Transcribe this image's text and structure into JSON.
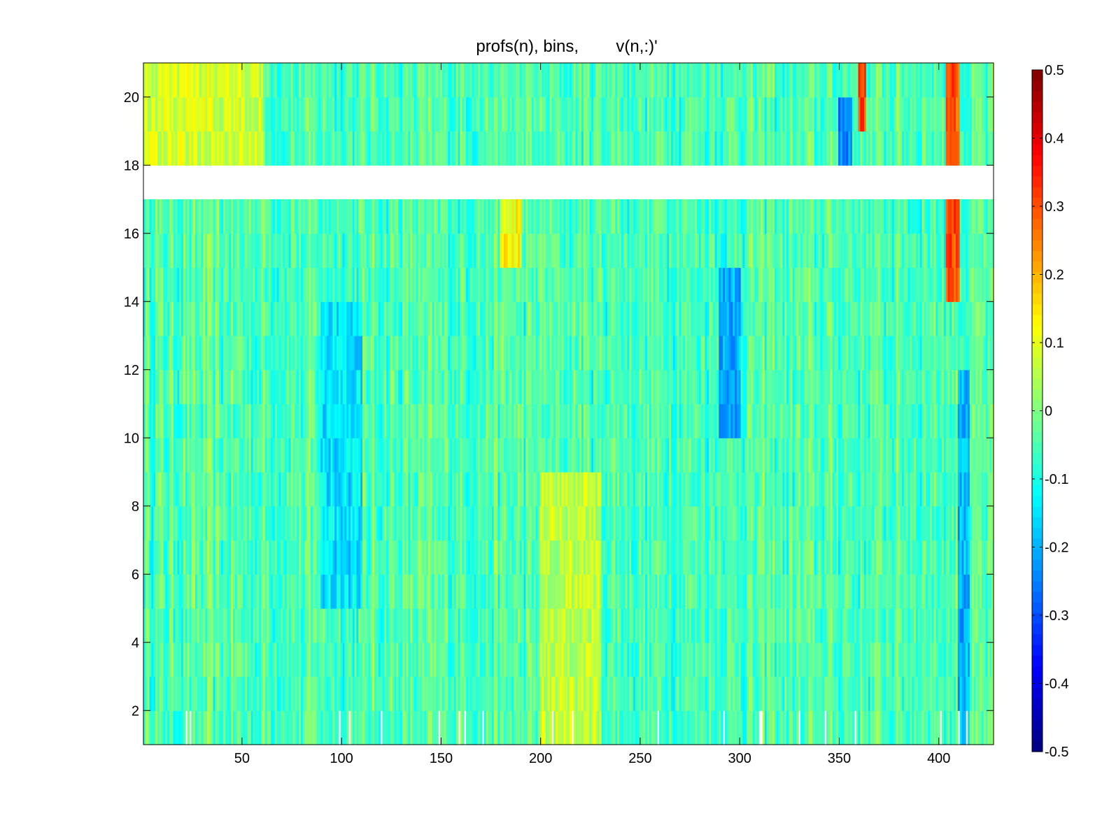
{
  "chart_data": {
    "type": "heatmap",
    "title": "profs(n), bins,        v(n,:)'",
    "xlabel": "",
    "ylabel": "",
    "x_ticks": [
      50,
      100,
      150,
      200,
      250,
      300,
      350,
      400
    ],
    "y_ticks": [
      2,
      4,
      6,
      8,
      10,
      12,
      14,
      16,
      18,
      20
    ],
    "xlim": [
      0.5,
      427.5
    ],
    "ylim": [
      1,
      21
    ],
    "n_bins": 427,
    "n_rows": 20,
    "missing_rows": [
      17
    ],
    "grid": false,
    "colormap": "jet",
    "colorbar": {
      "location": "right",
      "clim": [
        -0.5,
        0.5
      ],
      "ticks": [
        0.5,
        0.4,
        0.3,
        0.2,
        0.1,
        0,
        -0.1,
        -0.2,
        -0.3,
        -0.4,
        -0.5
      ]
    },
    "approx_field": {
      "background": -0.05,
      "features": [
        {
          "bins": [
            1,
            60
          ],
          "rows": [
            17,
            21
          ],
          "value": 0.08
        },
        {
          "bins": [
            180,
            190
          ],
          "rows": [
            15,
            16
          ],
          "value": 0.12
        },
        {
          "bins": [
            200,
            230
          ],
          "rows": [
            1,
            8
          ],
          "value": 0.06
        },
        {
          "bins": [
            90,
            110
          ],
          "rows": [
            5,
            13
          ],
          "value": -0.15
        },
        {
          "bins": [
            290,
            300
          ],
          "rows": [
            10,
            14
          ],
          "value": -0.2
        },
        {
          "bins": [
            360,
            363
          ],
          "rows": [
            19,
            21
          ],
          "value": 0.3
        },
        {
          "bins": [
            404,
            410
          ],
          "rows": [
            14,
            21
          ],
          "value": 0.3
        },
        {
          "bins": [
            350,
            356
          ],
          "rows": [
            17,
            19
          ],
          "value": -0.25
        },
        {
          "bins": [
            410,
            415
          ],
          "rows": [
            1,
            11
          ],
          "value": -0.2
        }
      ]
    }
  }
}
